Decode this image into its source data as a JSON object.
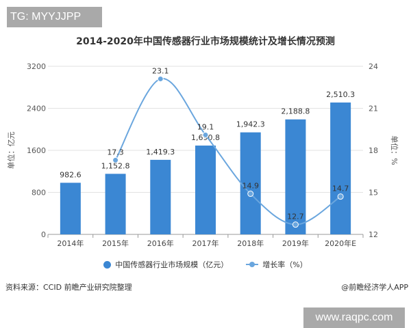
{
  "watermark_top": "TG: MYYJJPP",
  "watermark_bottom": "www.raqpc.com",
  "source": "资料来源：CCID 前瞻产业研究院整理",
  "credit": "@前瞻经济学人APP",
  "chart_data": {
    "type": "bar+line",
    "title": "2014-2020年中国传感器行业市场规模统计及增长情况预测",
    "categories": [
      "2014年",
      "2015年",
      "2016年",
      "2017年",
      "2018年",
      "2019年",
      "2020年E"
    ],
    "series": [
      {
        "name": "中国传感器行业市场规模（亿元）",
        "type": "bar",
        "axis": "left",
        "color": "#3b87d3",
        "values": [
          982.6,
          1152.8,
          1419.3,
          1690.8,
          1942.3,
          2188.8,
          2510.3
        ],
        "labels": [
          "982.6",
          "1,152.8",
          "1,419.3",
          "1,690.8",
          "1,942.3",
          "2,188.8",
          "2,510.3"
        ]
      },
      {
        "name": "增长率（%）",
        "type": "line",
        "axis": "right",
        "color": "#6aa6de",
        "smooth": true,
        "values": [
          null,
          17.3,
          23.1,
          19.1,
          14.9,
          12.7,
          14.7
        ],
        "labels": [
          "",
          "17.3",
          "23.1",
          "19.1",
          "14.9",
          "12.7",
          "14.7"
        ]
      }
    ],
    "ylabel_left": "单位：亿元",
    "ylabel_right": "单位：%",
    "ylim_left": [
      0,
      3200
    ],
    "yticks_left": [
      "0",
      "800",
      "1600",
      "2400",
      "3200"
    ],
    "ylim_right": [
      12,
      24
    ],
    "yticks_right": [
      "12",
      "15",
      "18",
      "21",
      "24"
    ],
    "grid": true,
    "legend": "bottom"
  }
}
